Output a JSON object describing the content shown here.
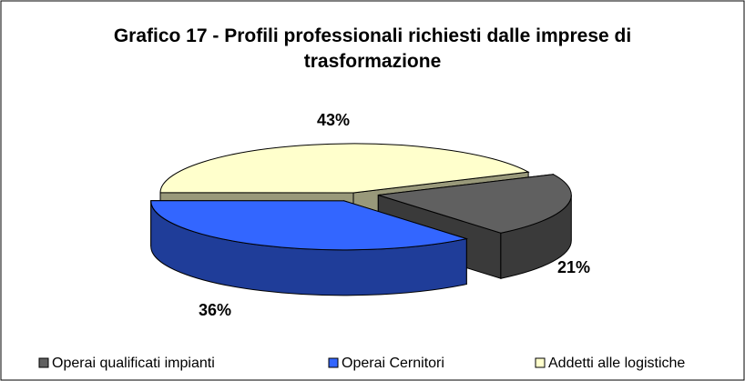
{
  "chart_data": {
    "type": "pie3d",
    "title": "Grafico 17 - Profili professionali richiesti dalle imprese di trasformazione",
    "categories": [
      "Operai qualificati impianti",
      "Operai Cernitori",
      "Addetti alle logistiche"
    ],
    "values": [
      21,
      36,
      43
    ],
    "value_labels": [
      "21%",
      "36%",
      "43%"
    ],
    "colors": [
      "#606060",
      "#3366ff",
      "#ffffcc"
    ],
    "legend": "bottom"
  }
}
